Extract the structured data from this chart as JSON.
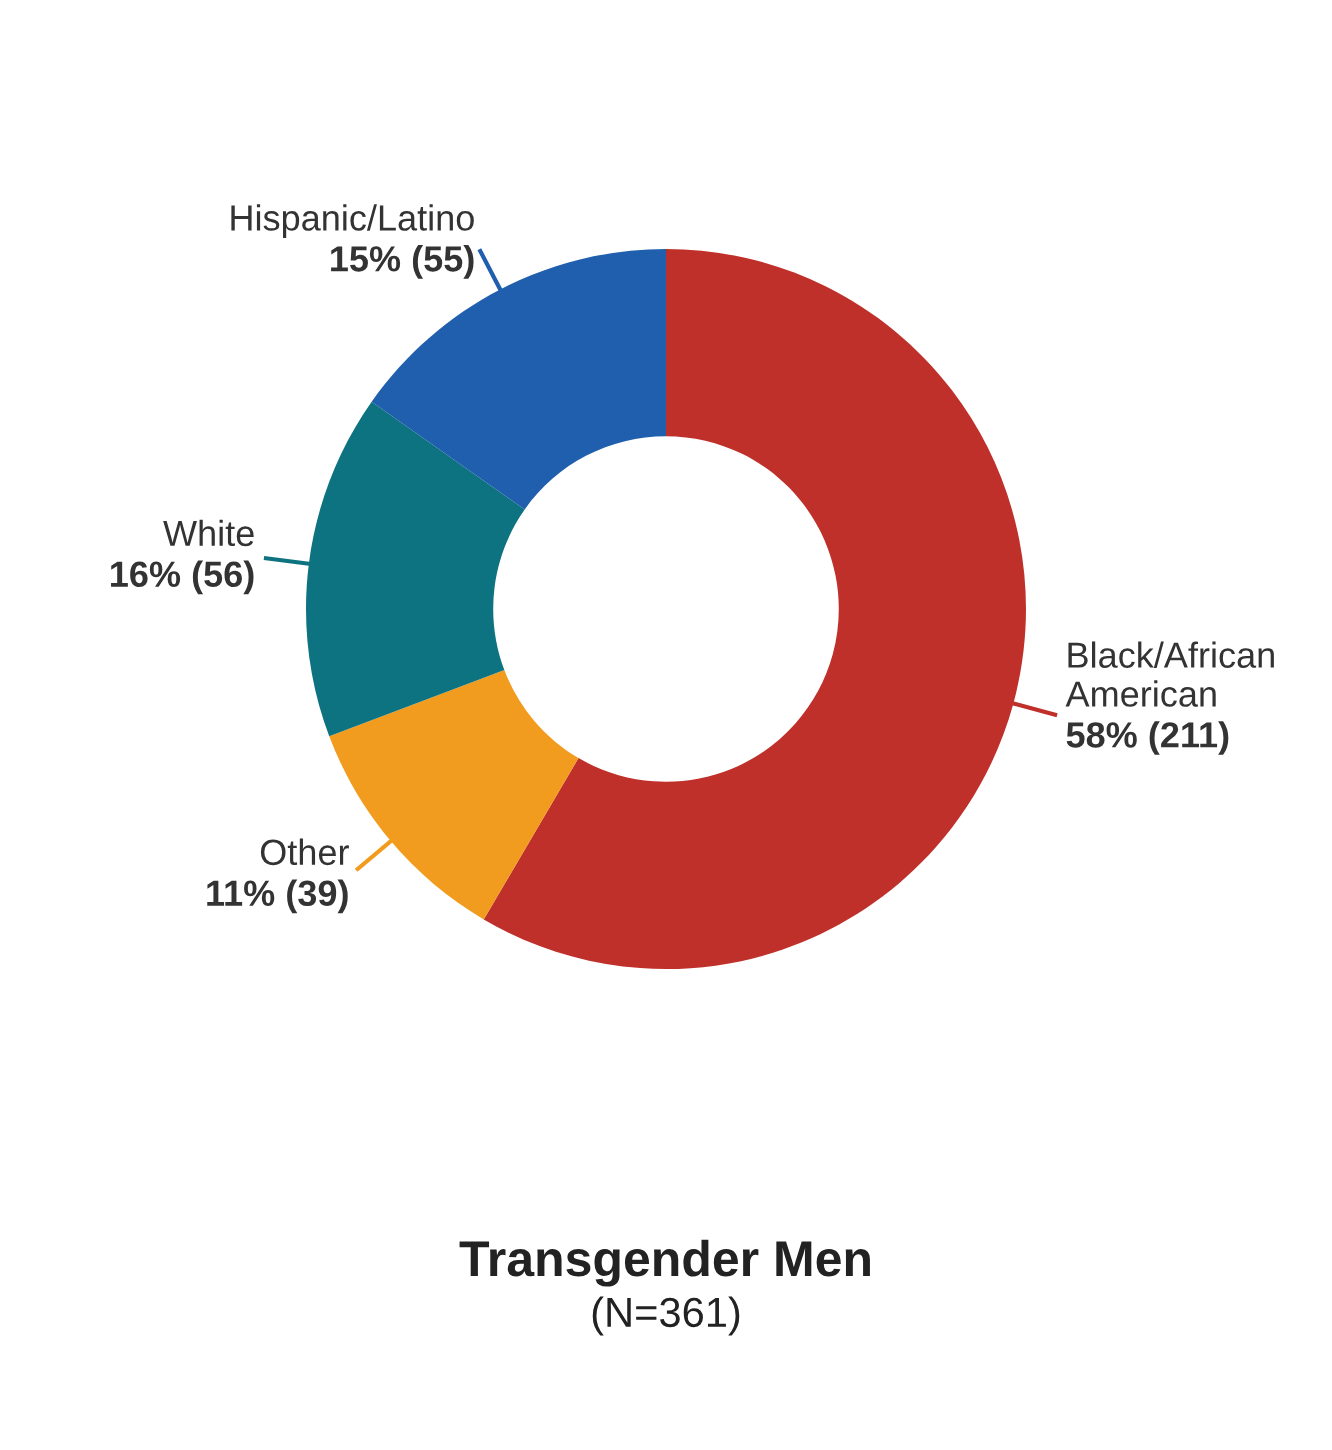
{
  "chart_data": {
    "type": "donut",
    "title": "Transgender Men",
    "subtitle": "(N=361)",
    "categories": [
      "Black/African\nAmerican",
      "Other",
      "White",
      "Hispanic/Latino"
    ],
    "values": [
      211,
      39,
      56,
      55
    ],
    "value_labels": [
      "58% (211)",
      "11% (39)",
      "16% (56)",
      "15% (55)"
    ],
    "colors": [
      "#c0302a",
      "#f29c1f",
      "#0e7380",
      "#1f5fae"
    ],
    "legend": false
  }
}
